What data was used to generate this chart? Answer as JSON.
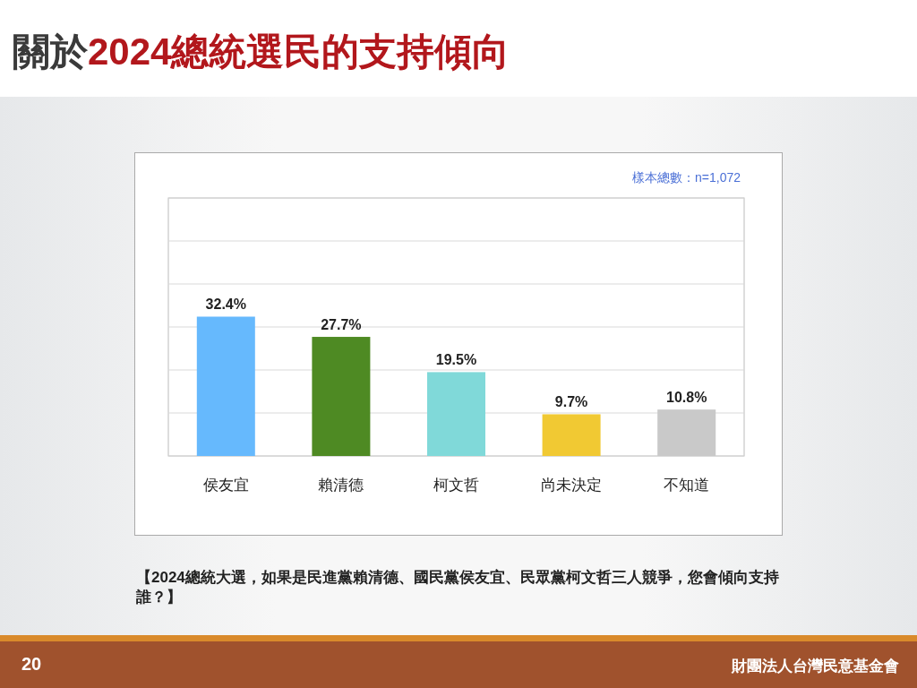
{
  "chart_data": {
    "type": "bar",
    "title": "關於2024總統選民的支持傾向",
    "categories": [
      "侯友宜",
      "賴清德",
      "柯文哲",
      "尚未決定",
      "不知道"
    ],
    "values": [
      32.4,
      27.7,
      19.5,
      9.7,
      10.8
    ],
    "colors": [
      "#66b9fd",
      "#4e8a23",
      "#80d9d9",
      "#f1c933",
      "#c9c9c9"
    ],
    "value_labels": [
      "32.4%",
      "27.7%",
      "19.5%",
      "9.7%",
      "10.8%"
    ],
    "ylim": [
      0,
      60
    ],
    "yticks": [
      {
        "value": 0,
        "label": null
      },
      {
        "value": 10,
        "label": null
      },
      {
        "value": 20,
        "label": null
      },
      {
        "value": 30,
        "label": null
      },
      {
        "value": 40,
        "label": null
      },
      {
        "value": 50,
        "label": null
      },
      {
        "value": 60,
        "label": null
      }
    ],
    "grid": "y",
    "tick_labels": "x",
    "annotations": [
      "樣本總數：n=1,072",
      "【2024總統大選，如果是民進黨賴清德、國民黨侯友宜、民眾黨柯文哲三人競爭，您會傾向支持誰？】",
      "20",
      "財團法人台灣民意基金會"
    ]
  }
}
